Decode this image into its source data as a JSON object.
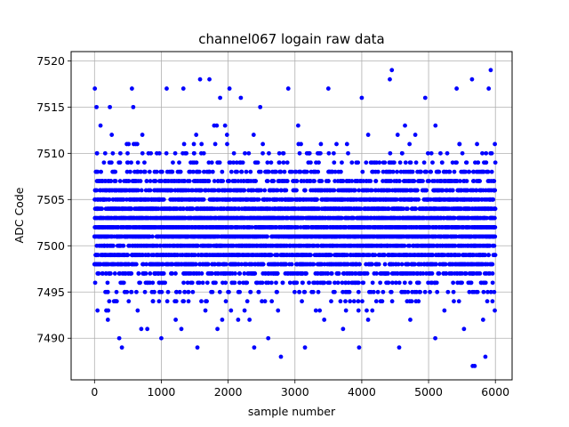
{
  "chart_data": {
    "type": "scatter",
    "title": "channel067 logain raw data",
    "xlabel": "sample number",
    "ylabel": "ADC Code",
    "xlim": [
      -350,
      6250
    ],
    "ylim": [
      7485.5,
      7521
    ],
    "xticks": [
      0,
      1000,
      2000,
      3000,
      4000,
      5000,
      6000
    ],
    "yticks": [
      7490,
      7495,
      7500,
      7505,
      7510,
      7515,
      7520
    ],
    "grid": true,
    "marker_color": "#0000ff",
    "series": [
      {
        "count": 6000,
        "core_range": [
          7496,
          7508
        ],
        "mid_range": [
          7492,
          7513
        ],
        "points": [
          {
            "x": 5,
            "y": 7517
          },
          {
            "x": 30,
            "y": 7515
          },
          {
            "x": 45,
            "y": 7493
          },
          {
            "x": 10,
            "y": 7496
          },
          {
            "x": 90,
            "y": 7513
          },
          {
            "x": 180,
            "y": 7495
          },
          {
            "x": 200,
            "y": 7492
          },
          {
            "x": 230,
            "y": 7515
          },
          {
            "x": 370,
            "y": 7490
          },
          {
            "x": 410,
            "y": 7489
          },
          {
            "x": 560,
            "y": 7517
          },
          {
            "x": 580,
            "y": 7515
          },
          {
            "x": 700,
            "y": 7491
          },
          {
            "x": 790,
            "y": 7491
          },
          {
            "x": 1000,
            "y": 7490
          },
          {
            "x": 1080,
            "y": 7517
          },
          {
            "x": 1300,
            "y": 7491
          },
          {
            "x": 1330,
            "y": 7517
          },
          {
            "x": 1540,
            "y": 7489
          },
          {
            "x": 1580,
            "y": 7518
          },
          {
            "x": 1660,
            "y": 7493
          },
          {
            "x": 1720,
            "y": 7518
          },
          {
            "x": 1840,
            "y": 7491
          },
          {
            "x": 1880,
            "y": 7516
          },
          {
            "x": 2020,
            "y": 7517
          },
          {
            "x": 2150,
            "y": 7492
          },
          {
            "x": 2190,
            "y": 7516
          },
          {
            "x": 2390,
            "y": 7489
          },
          {
            "x": 2480,
            "y": 7515
          },
          {
            "x": 2600,
            "y": 7490
          },
          {
            "x": 2790,
            "y": 7488
          },
          {
            "x": 2900,
            "y": 7517
          },
          {
            "x": 3150,
            "y": 7489
          },
          {
            "x": 3500,
            "y": 7517
          },
          {
            "x": 3720,
            "y": 7491
          },
          {
            "x": 3960,
            "y": 7489
          },
          {
            "x": 4000,
            "y": 7516
          },
          {
            "x": 4420,
            "y": 7518
          },
          {
            "x": 4450,
            "y": 7519
          },
          {
            "x": 4560,
            "y": 7489
          },
          {
            "x": 4950,
            "y": 7516
          },
          {
            "x": 5100,
            "y": 7490
          },
          {
            "x": 5420,
            "y": 7517
          },
          {
            "x": 5530,
            "y": 7491
          },
          {
            "x": 5650,
            "y": 7518
          },
          {
            "x": 5660,
            "y": 7487
          },
          {
            "x": 5690,
            "y": 7487
          },
          {
            "x": 5850,
            "y": 7488
          },
          {
            "x": 5900,
            "y": 7517
          },
          {
            "x": 5930,
            "y": 7519
          }
        ]
      }
    ]
  }
}
